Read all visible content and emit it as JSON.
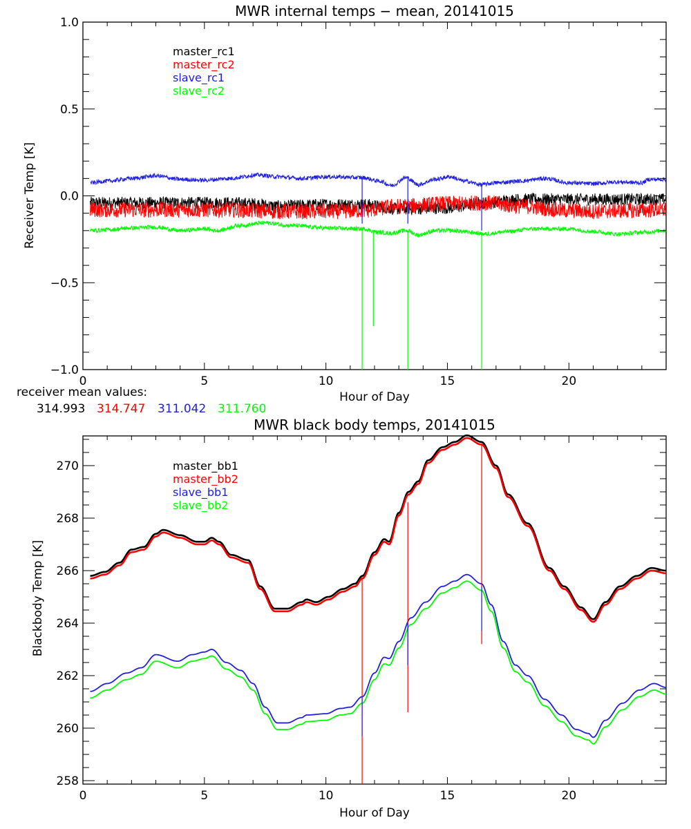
{
  "colors": {
    "black": "#000000",
    "red": "#ff0000",
    "blue": "#2020e0",
    "green": "#00ff00"
  },
  "receiver_mean": {
    "label": "receiver mean values:",
    "values": [
      {
        "text": "314.993",
        "color": "#000000"
      },
      {
        "text": "314.747",
        "color": "#ff0000"
      },
      {
        "text": "311.042",
        "color": "#2020e0"
      },
      {
        "text": "311.760",
        "color": "#00ff00"
      }
    ]
  },
  "chart_data": [
    {
      "type": "line",
      "title": "MWR internal temps − mean, 20141015",
      "xlabel": "Hour of Day",
      "ylabel": "Receiver Temp [K]",
      "xlim": [
        0,
        24
      ],
      "ylim": [
        -1.0,
        1.0
      ],
      "xticks": [
        0,
        5,
        10,
        15,
        20
      ],
      "xtick_labels": [
        "0",
        "5",
        "10",
        "15",
        "20"
      ],
      "x_minor_step": 1,
      "yticks": [
        -1.0,
        -0.5,
        0.0,
        0.5,
        1.0
      ],
      "ytick_labels": [
        "−1.0",
        "−0.5",
        "0.0",
        "0.5",
        "1.0"
      ],
      "y_minor_step": 0.1,
      "grid": false,
      "legend_position": "top-left",
      "noisy": true,
      "series": [
        {
          "name": "master_rc1",
          "color": "#000000",
          "noise": 0.035,
          "x": [
            0.3,
            2,
            4,
            6,
            7,
            8,
            10,
            11.5,
            13,
            15,
            16.5,
            18,
            20,
            22,
            24
          ],
          "y": [
            -0.04,
            -0.04,
            -0.04,
            -0.04,
            -0.045,
            -0.06,
            -0.05,
            -0.05,
            -0.075,
            -0.07,
            -0.04,
            -0.02,
            -0.02,
            -0.02,
            -0.02
          ]
        },
        {
          "name": "master_rc2",
          "color": "#ff0000",
          "noise": 0.045,
          "x": [
            0.3,
            2,
            4,
            6,
            7,
            8,
            10,
            11.5,
            13,
            15,
            16.5,
            18,
            20,
            21,
            22,
            24
          ],
          "y": [
            -0.08,
            -0.08,
            -0.08,
            -0.08,
            -0.085,
            -0.09,
            -0.09,
            -0.085,
            -0.06,
            -0.045,
            -0.04,
            -0.06,
            -0.085,
            -0.09,
            -0.085,
            -0.08
          ]
        },
        {
          "name": "slave_rc1",
          "color": "#2020e0",
          "noise": 0.012,
          "x": [
            0.3,
            1,
            2,
            3,
            4,
            5,
            6,
            7.2,
            8,
            9,
            10,
            11.5,
            12.2,
            12.7,
            13.3,
            13.8,
            14.5,
            15.1,
            15.7,
            16.4,
            17,
            18,
            19,
            20,
            21,
            22,
            23,
            23.3,
            24
          ],
          "y": [
            0.075,
            0.085,
            0.1,
            0.115,
            0.095,
            0.09,
            0.1,
            0.12,
            0.11,
            0.1,
            0.11,
            0.105,
            0.085,
            0.06,
            0.105,
            0.065,
            0.095,
            0.11,
            0.085,
            0.065,
            0.075,
            0.085,
            0.1,
            0.075,
            0.07,
            0.08,
            0.075,
            0.095,
            0.095
          ]
        },
        {
          "name": "slave_rc2",
          "color": "#00ff00",
          "noise": 0.012,
          "x": [
            0.3,
            1,
            2,
            3,
            4,
            5,
            5.5,
            6.5,
            7.5,
            8.5,
            10,
            11.5,
            12.2,
            12.6,
            13.3,
            13.8,
            14.5,
            15.2,
            16,
            16.5,
            17.5,
            18.5,
            20,
            21,
            22,
            23,
            24
          ],
          "y": [
            -0.2,
            -0.195,
            -0.185,
            -0.18,
            -0.2,
            -0.19,
            -0.2,
            -0.17,
            -0.155,
            -0.17,
            -0.185,
            -0.19,
            -0.21,
            -0.215,
            -0.2,
            -0.225,
            -0.2,
            -0.2,
            -0.21,
            -0.22,
            -0.205,
            -0.19,
            -0.19,
            -0.205,
            -0.22,
            -0.21,
            -0.2
          ]
        }
      ],
      "spikes": [
        {
          "series": "slave_rc1",
          "x": 11.49,
          "y_from": 0.105,
          "y_to": -0.16
        },
        {
          "series": "slave_rc1",
          "x": 13.37,
          "y_from": 0.105,
          "y_to": -0.16
        },
        {
          "series": "slave_rc1",
          "x": 16.41,
          "y_from": 0.065,
          "y_to": -0.2
        },
        {
          "series": "slave_rc2",
          "x": 11.49,
          "y_from": -0.19,
          "y_to": -1.0
        },
        {
          "series": "slave_rc2",
          "x": 11.95,
          "y_from": -0.2,
          "y_to": -0.75
        },
        {
          "series": "slave_rc2",
          "x": 13.37,
          "y_from": -0.2,
          "y_to": -1.0
        },
        {
          "series": "slave_rc2",
          "x": 16.41,
          "y_from": -0.22,
          "y_to": -1.0
        }
      ]
    },
    {
      "type": "line",
      "title": "MWR black body temps, 20141015",
      "xlabel": "Hour of Day",
      "ylabel": "Blackbody Temp [K]",
      "xlim": [
        0,
        24
      ],
      "ylim": [
        257.87,
        271.13
      ],
      "xticks": [
        0,
        5,
        10,
        15,
        20
      ],
      "xtick_labels": [
        "0",
        "5",
        "10",
        "15",
        "20"
      ],
      "x_minor_step": 1,
      "yticks": [
        258,
        260,
        262,
        264,
        266,
        268,
        270
      ],
      "ytick_labels": [
        "258",
        "260",
        "262",
        "264",
        "266",
        "268",
        "270"
      ],
      "y_minor_step": 0.5,
      "grid": false,
      "legend_position": "top-left",
      "noisy": false,
      "series": [
        {
          "name": "master_bb1",
          "color": "#000000",
          "x": [
            0.3,
            0.9,
            1.5,
            2.0,
            2.5,
            3.0,
            3.3,
            4.0,
            4.7,
            5.0,
            5.3,
            5.6,
            6.1,
            6.8,
            7.3,
            7.9,
            8.4,
            9.0,
            9.2,
            9.6,
            10.1,
            10.7,
            11.2,
            11.5,
            12.0,
            12.4,
            12.6,
            13.0,
            13.4,
            13.8,
            14.2,
            14.8,
            15.3,
            15.8,
            16.4,
            17.0,
            17.5,
            18.3,
            19.2,
            19.8,
            20.5,
            21.0,
            21.5,
            22.1,
            22.8,
            23.4,
            24.0
          ],
          "y": [
            265.8,
            265.95,
            266.3,
            266.8,
            266.9,
            267.4,
            267.55,
            267.35,
            267.1,
            267.1,
            267.25,
            267.1,
            266.6,
            266.4,
            265.4,
            264.55,
            264.55,
            264.8,
            264.9,
            264.8,
            265.0,
            265.3,
            265.5,
            265.8,
            266.7,
            267.2,
            267.1,
            268.2,
            269.0,
            269.4,
            270.2,
            270.7,
            270.9,
            271.15,
            270.9,
            270.0,
            268.9,
            267.8,
            266.1,
            265.4,
            264.6,
            264.15,
            264.8,
            265.4,
            265.8,
            266.1,
            266.0
          ]
        },
        {
          "name": "master_bb2",
          "color": "#ff0000",
          "x": [
            0.3,
            0.9,
            1.5,
            2.0,
            2.5,
            3.0,
            3.3,
            4.0,
            4.7,
            5.0,
            5.3,
            5.6,
            6.1,
            6.8,
            7.3,
            7.9,
            8.4,
            9.0,
            9.2,
            9.6,
            10.1,
            10.7,
            11.2,
            11.5,
            12.0,
            12.4,
            12.6,
            13.0,
            13.4,
            13.8,
            14.2,
            14.8,
            15.3,
            15.8,
            16.4,
            17.0,
            17.5,
            18.3,
            19.2,
            19.8,
            20.5,
            21.0,
            21.5,
            22.1,
            22.8,
            23.4,
            24.0
          ],
          "y": [
            265.7,
            265.85,
            266.2,
            266.7,
            266.8,
            267.3,
            267.45,
            267.25,
            267.0,
            267.0,
            267.15,
            267.0,
            266.5,
            266.3,
            265.3,
            264.45,
            264.45,
            264.7,
            264.8,
            264.7,
            264.9,
            265.2,
            265.4,
            265.7,
            266.6,
            267.1,
            267.0,
            268.1,
            268.9,
            269.3,
            270.1,
            270.6,
            270.8,
            271.05,
            270.8,
            269.9,
            268.8,
            267.7,
            266.0,
            265.3,
            264.5,
            264.05,
            264.7,
            265.3,
            265.7,
            266.0,
            265.9
          ]
        },
        {
          "name": "slave_bb1",
          "color": "#2020e0",
          "x": [
            0.3,
            1.0,
            1.8,
            2.4,
            3.0,
            3.9,
            4.5,
            5.0,
            5.3,
            5.9,
            6.5,
            7.0,
            7.5,
            8.0,
            8.4,
            9.0,
            9.2,
            10.0,
            10.6,
            11.0,
            11.5,
            12.0,
            12.4,
            12.6,
            13.0,
            13.5,
            14.1,
            14.8,
            15.3,
            15.8,
            16.4,
            16.8,
            17.3,
            17.8,
            18.3,
            19.0,
            19.7,
            20.3,
            20.8,
            21.0,
            21.5,
            22.2,
            22.9,
            23.5,
            24.0
          ],
          "y": [
            261.4,
            261.7,
            262.1,
            262.3,
            262.8,
            262.55,
            262.8,
            262.9,
            263.0,
            262.5,
            262.2,
            261.7,
            260.8,
            260.2,
            260.2,
            260.4,
            260.5,
            260.55,
            260.75,
            260.8,
            261.2,
            262.1,
            262.7,
            262.65,
            263.3,
            264.2,
            264.8,
            265.4,
            265.6,
            265.85,
            265.5,
            264.7,
            263.3,
            262.4,
            262.0,
            261.1,
            260.5,
            259.95,
            259.8,
            259.65,
            260.3,
            260.95,
            261.45,
            261.7,
            261.55
          ]
        },
        {
          "name": "slave_bb2",
          "color": "#00ff00",
          "x": [
            0.3,
            1.0,
            1.8,
            2.4,
            3.0,
            3.9,
            4.5,
            5.0,
            5.3,
            5.9,
            6.5,
            7.0,
            7.5,
            8.0,
            8.4,
            9.0,
            9.2,
            10.0,
            10.6,
            11.0,
            11.5,
            12.0,
            12.4,
            12.6,
            13.0,
            13.5,
            14.1,
            14.8,
            15.3,
            15.8,
            16.4,
            16.8,
            17.3,
            17.8,
            18.3,
            19.0,
            19.7,
            20.3,
            20.8,
            21.0,
            21.5,
            22.2,
            22.9,
            23.5,
            24.0
          ],
          "y": [
            261.15,
            261.45,
            261.85,
            262.05,
            262.55,
            262.3,
            262.55,
            262.65,
            262.75,
            262.25,
            261.95,
            261.45,
            260.55,
            259.95,
            259.95,
            260.15,
            260.25,
            260.3,
            260.5,
            260.55,
            260.95,
            261.85,
            262.45,
            262.4,
            263.05,
            263.95,
            264.55,
            265.15,
            265.35,
            265.6,
            265.25,
            264.45,
            263.05,
            262.15,
            261.75,
            260.85,
            260.25,
            259.7,
            259.55,
            259.4,
            260.05,
            260.7,
            261.2,
            261.45,
            261.3
          ]
        }
      ],
      "spikes": [
        {
          "series": "master_bb2",
          "x": 11.49,
          "y_from": 265.75,
          "y_to": 257.87
        },
        {
          "series": "master_bb2",
          "x": 13.37,
          "y_from": 268.6,
          "y_to": 260.6
        },
        {
          "series": "master_bb2",
          "x": 16.41,
          "y_from": 270.85,
          "y_to": 263.2
        },
        {
          "series": "slave_bb1",
          "x": 11.49,
          "y_from": 261.2,
          "y_to": 259.7
        },
        {
          "series": "slave_bb1",
          "x": 13.37,
          "y_from": 264.0,
          "y_to": 262.4
        },
        {
          "series": "slave_bb1",
          "x": 16.41,
          "y_from": 265.4,
          "y_to": 263.7
        }
      ]
    }
  ]
}
